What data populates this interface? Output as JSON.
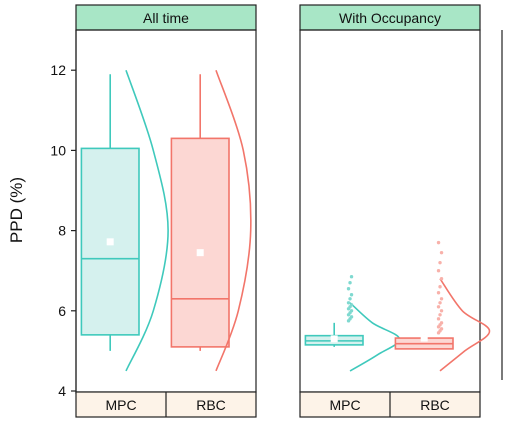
{
  "chart_data": {
    "type": "box",
    "ylabel": "PPD (%)",
    "ylim": [
      4,
      13
    ],
    "yticks": [
      4,
      6,
      8,
      10,
      12
    ],
    "categories": [
      "MPC",
      "RBC"
    ],
    "colors": {
      "MPC": {
        "stroke": "#3fc9bc",
        "fill": "#d5f1ee",
        "outlier": "#7fd9d0"
      },
      "RBC": {
        "stroke": "#f2756a",
        "fill": "#fcd7d3",
        "outlier": "#f8b1aa"
      },
      "strip": "#a8e6c6"
    },
    "panels": [
      {
        "title": "All time",
        "boxes": [
          {
            "category": "MPC",
            "whisker_low": 5.0,
            "q1": 5.4,
            "median": 7.3,
            "q3": 10.05,
            "whisker_high": 11.9,
            "mean": 7.72,
            "density_x": [
              4.5,
              6.0,
              8.0,
              10.0,
              12.0
            ],
            "density_w": [
              0.0,
              0.55,
              0.85,
              0.55,
              0.0
            ],
            "outliers": []
          },
          {
            "category": "RBC",
            "whisker_low": 5.0,
            "q1": 5.1,
            "median": 6.3,
            "q3": 10.3,
            "whisker_high": 11.9,
            "mean": 7.45,
            "density_x": [
              4.5,
              6.0,
              8.0,
              10.0,
              12.0
            ],
            "density_w": [
              0.0,
              0.45,
              0.7,
              0.55,
              0.0
            ],
            "outliers": []
          }
        ]
      },
      {
        "title": "With Occupancy",
        "boxes": [
          {
            "category": "MPC",
            "whisker_low": 5.1,
            "q1": 5.15,
            "median": 5.25,
            "q3": 5.38,
            "whisker_high": 5.7,
            "mean": 5.3,
            "density_x": [
              4.5,
              4.9,
              5.3,
              5.7,
              6.2
            ],
            "density_w": [
              0.0,
              0.55,
              1.0,
              0.45,
              0.0
            ],
            "outliers": [
              5.75,
              5.8,
              5.85,
              5.9,
              5.95,
              6.0,
              6.05,
              6.1,
              6.15,
              6.2,
              6.3,
              6.4,
              6.55,
              6.7,
              6.85
            ]
          },
          {
            "category": "RBC",
            "whisker_low": 5.05,
            "q1": 5.05,
            "median": 5.18,
            "q3": 5.32,
            "whisker_high": 5.4,
            "mean": 5.32,
            "density_x": [
              4.5,
              5.0,
              5.5,
              6.0,
              6.8
            ],
            "density_w": [
              0.0,
              0.5,
              1.0,
              0.45,
              0.0
            ],
            "outliers": [
              5.45,
              5.5,
              5.55,
              5.6,
              5.65,
              5.7,
              5.8,
              5.9,
              6.0,
              6.1,
              6.2,
              6.3,
              6.45,
              6.6,
              6.8,
              7.0,
              7.2,
              7.45,
              7.7
            ]
          }
        ]
      }
    ]
  }
}
